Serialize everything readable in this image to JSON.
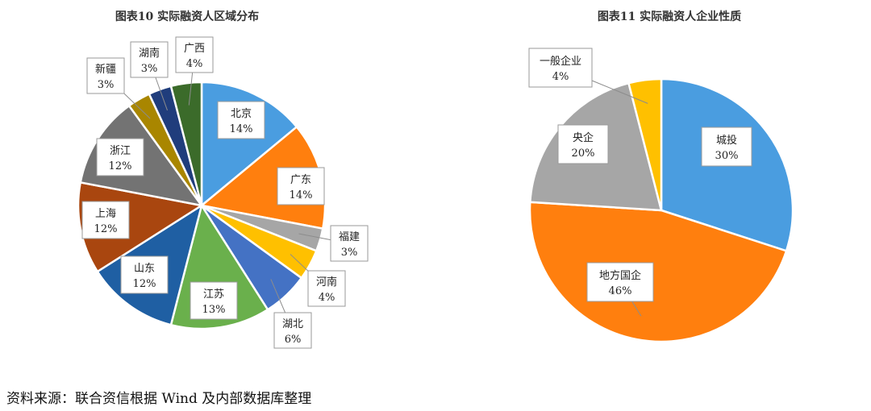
{
  "source_note": "资料来源：联合资信根据 Wind 及内部数据库整理",
  "chart_data": [
    {
      "type": "pie",
      "title": "图表10 实际融资人区域分布",
      "categories": [
        "北京",
        "广东",
        "福建",
        "河南",
        "湖北",
        "江苏",
        "山东",
        "上海",
        "浙江",
        "新疆",
        "湖南",
        "广西"
      ],
      "values": [
        14,
        14,
        3,
        4,
        6,
        13,
        12,
        12,
        12,
        3,
        3,
        4
      ],
      "labels": [
        "14%",
        "14%",
        "3%",
        "4%",
        "6%",
        "13%",
        "12%",
        "12%",
        "12%",
        "3%",
        "3%",
        "4%"
      ],
      "colors": [
        "#4a9de0",
        "#ff7f0e",
        "#a6a6a6",
        "#ffc000",
        "#4472c4",
        "#6ab04c",
        "#1f5fa3",
        "#a9460f",
        "#737373",
        "#a98600",
        "#203d7c",
        "#3b6b2a"
      ],
      "legend": "none"
    },
    {
      "type": "pie",
      "title": "图表11 实际融资人企业性质",
      "categories": [
        "城投",
        "地方国企",
        "央企",
        "一般企业"
      ],
      "values": [
        30,
        46,
        20,
        4
      ],
      "labels": [
        "30%",
        "46%",
        "20%",
        "4%"
      ],
      "colors": [
        "#4a9de0",
        "#ff7f0e",
        "#a6a6a6",
        "#ffc000"
      ],
      "legend": "none"
    }
  ]
}
